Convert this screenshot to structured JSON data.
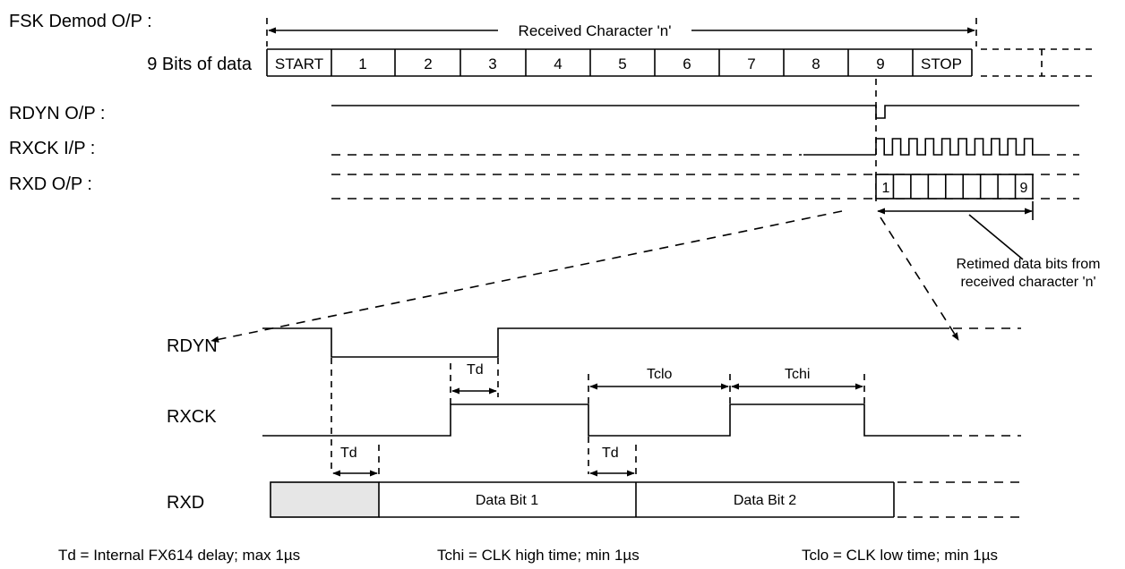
{
  "top": {
    "fsk_label": "FSK Demod O/P :",
    "received_char_label": "Received Character 'n'",
    "bits_label": "9 Bits of data",
    "cells": [
      "START",
      "1",
      "2",
      "3",
      "4",
      "5",
      "6",
      "7",
      "8",
      "9",
      "STOP"
    ],
    "rdyn_label": "RDYN O/P :",
    "rxck_label": "RXCK I/P :",
    "rxd_label": "RXD O/P :",
    "rxd_first_bit": "1",
    "rxd_last_bit": "9",
    "retimed_line1": "Retimed data bits from",
    "retimed_line2": "received character 'n'"
  },
  "detail": {
    "rdyn": "RDYN",
    "rxck": "RXCK",
    "rxd": "RXD",
    "td": "Td",
    "tclo": "Tclo",
    "tchi": "Tchi",
    "data_bit_1": "Data Bit 1",
    "data_bit_2": "Data Bit 2"
  },
  "notes": {
    "td_note": "Td = Internal FX614 delay; max 1µs",
    "tchi_note": "Tchi = CLK high time; min 1µs",
    "tclo_note": "Tclo = CLK low time; min 1µs"
  }
}
